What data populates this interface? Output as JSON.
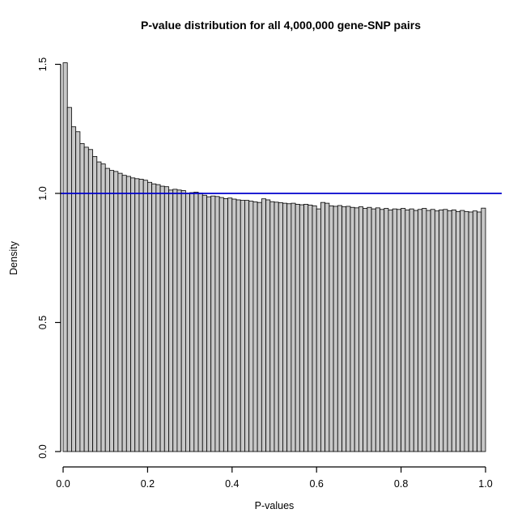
{
  "chart_data": {
    "type": "bar",
    "subtype": "histogram",
    "title": "P-value distribution for all 4,000,000 gene-SNP pairs",
    "xlabel": "P-values",
    "ylabel": "Density",
    "bin_start": 0.0,
    "bin_width": 0.01,
    "xlim": [
      0.0,
      1.0
    ],
    "ylim": [
      0.0,
      1.5
    ],
    "grid": false,
    "legend": null,
    "x_ticks": [
      {
        "value": 0.0,
        "label": "0.0"
      },
      {
        "value": 0.2,
        "label": "0.2"
      },
      {
        "value": 0.4,
        "label": "0.4"
      },
      {
        "value": 0.6,
        "label": "0.6"
      },
      {
        "value": 0.8,
        "label": "0.8"
      },
      {
        "value": 1.0,
        "label": "1.0"
      }
    ],
    "y_ticks": [
      {
        "value": 0.0,
        "label": "0.0"
      },
      {
        "value": 0.5,
        "label": "0.5"
      },
      {
        "value": 1.0,
        "label": "1.0"
      },
      {
        "value": 1.5,
        "label": "1.5"
      }
    ],
    "reference_line": {
      "y": 1.0,
      "color": "#0000CD"
    },
    "colors": {
      "bar_fill": "#C8C8C8",
      "bar_border": "#000000",
      "axis": "#000000",
      "background": "#FFFFFF"
    },
    "values": [
      1.506,
      1.333,
      1.258,
      1.239,
      1.193,
      1.179,
      1.17,
      1.143,
      1.122,
      1.114,
      1.097,
      1.089,
      1.085,
      1.078,
      1.07,
      1.066,
      1.06,
      1.057,
      1.055,
      1.051,
      1.043,
      1.037,
      1.034,
      1.028,
      1.026,
      1.013,
      1.016,
      1.013,
      1.011,
      1.001,
      1.003,
      1.005,
      1.001,
      0.993,
      0.987,
      0.99,
      0.988,
      0.984,
      0.98,
      0.982,
      0.978,
      0.975,
      0.973,
      0.973,
      0.97,
      0.967,
      0.965,
      0.979,
      0.975,
      0.968,
      0.966,
      0.964,
      0.962,
      0.96,
      0.962,
      0.958,
      0.956,
      0.958,
      0.955,
      0.952,
      0.94,
      0.965,
      0.962,
      0.952,
      0.95,
      0.953,
      0.948,
      0.95,
      0.946,
      0.944,
      0.948,
      0.942,
      0.946,
      0.94,
      0.944,
      0.938,
      0.942,
      0.936,
      0.94,
      0.938,
      0.942,
      0.936,
      0.94,
      0.934,
      0.938,
      0.942,
      0.934,
      0.938,
      0.932,
      0.936,
      0.938,
      0.933,
      0.936,
      0.93,
      0.934,
      0.93,
      0.928,
      0.932,
      0.928,
      0.943
    ]
  }
}
